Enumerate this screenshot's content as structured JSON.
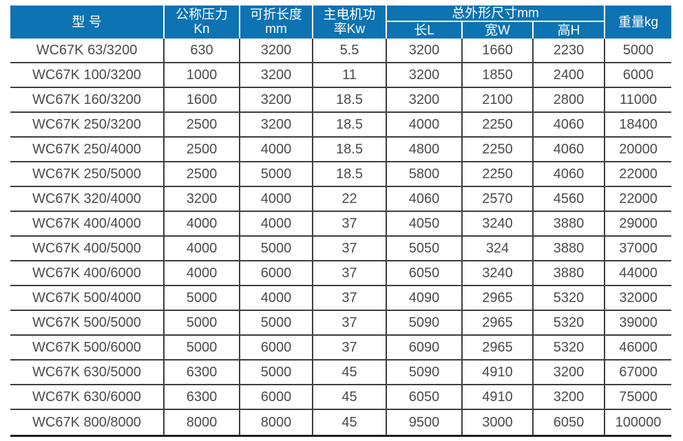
{
  "table": {
    "header": {
      "model": "型 号",
      "pressure": [
        "公称压力",
        "Kn"
      ],
      "fold_length": [
        "可折长度",
        "mm"
      ],
      "motor_power": [
        "主电机功",
        "率Kw"
      ],
      "dimensions_group": "总外形尺寸mm",
      "dim_length": "长L",
      "dim_width": "宽W",
      "dim_height": "高H",
      "weight": "重量kg"
    },
    "columns_semantic": [
      "model",
      "nominal-pressure-kn",
      "fold-length-mm",
      "motor-power-kw",
      "dim-length-mm",
      "dim-width-mm",
      "dim-height-mm",
      "weight-kg"
    ],
    "rows": [
      [
        "WC67K 63/3200",
        "630",
        "3200",
        "5.5",
        "3200",
        "1660",
        "2230",
        "5000"
      ],
      [
        "WC67K 100/3200",
        "1000",
        "3200",
        "11",
        "3200",
        "1850",
        "2400",
        "6000"
      ],
      [
        "WC67K 160/3200",
        "1600",
        "3200",
        "18.5",
        "3200",
        "2100",
        "2800",
        "11000"
      ],
      [
        "WC67K 250/3200",
        "2500",
        "3200",
        "18.5",
        "4000",
        "2250",
        "4060",
        "18400"
      ],
      [
        "WC67K 250/4000",
        "2500",
        "4000",
        "18.5",
        "4800",
        "2250",
        "4060",
        "20000"
      ],
      [
        "WC67K 250/5000",
        "2500",
        "5000",
        "18.5",
        "5800",
        "2250",
        "4060",
        "22000"
      ],
      [
        "WC67K 320/4000",
        "3200",
        "4000",
        "22",
        "4060",
        "2570",
        "4560",
        "22000"
      ],
      [
        "WC67K 400/4000",
        "4000",
        "4000",
        "37",
        "4050",
        "3240",
        "3880",
        "29000"
      ],
      [
        "WC67K 400/5000",
        "4000",
        "5000",
        "37",
        "5050",
        "324",
        "3880",
        "37000"
      ],
      [
        "WC67K 400/6000",
        "4000",
        "6000",
        "37",
        "6050",
        "3240",
        "3880",
        "44000"
      ],
      [
        "WC67K 500/4000",
        "5000",
        "4000",
        "37",
        "4090",
        "2965",
        "5320",
        "32000"
      ],
      [
        "WC67K 500/5000",
        "5000",
        "5000",
        "37",
        "5090",
        "2965",
        "5320",
        "39000"
      ],
      [
        "WC67K 500/6000",
        "5000",
        "6000",
        "37",
        "6090",
        "2965",
        "5320",
        "46000"
      ],
      [
        "WC67K 630/5000",
        "6300",
        "5000",
        "45",
        "5090",
        "4910",
        "3200",
        "67000"
      ],
      [
        "WC67K 630/6000",
        "6300",
        "6000",
        "45",
        "6050",
        "4910",
        "3200",
        "75000"
      ],
      [
        "WC67K 800/8000",
        "8000",
        "8000",
        "45",
        "9500",
        "3000",
        "6050",
        "100000"
      ]
    ]
  },
  "colors": {
    "header_bg": "#0d73b2",
    "header_text": "#ffffff",
    "grid_line": "#3d3d3d",
    "cell_text": "#4a4a4a",
    "bottom_bar": "#1d1d1d"
  }
}
